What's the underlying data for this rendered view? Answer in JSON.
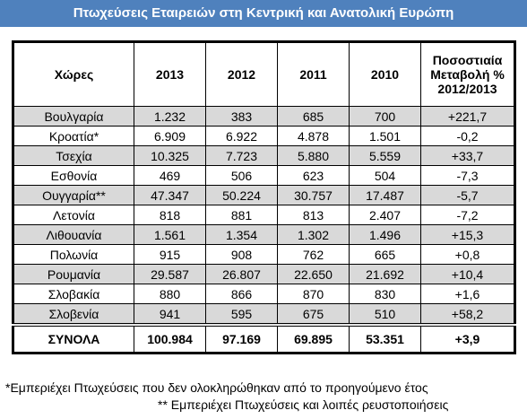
{
  "header": {
    "title": "Πτωχεύσεις Εταιρειών στη Κεντρική και Ανατολική Ευρώπη"
  },
  "table": {
    "columns": [
      "Χώρες",
      "2013",
      "2012",
      "2011",
      "2010",
      [
        "Ποσοστιαία",
        "Μεταβολή %",
        "2012/2013"
      ]
    ],
    "rows": [
      [
        "Βουλγαρία",
        "1.232",
        "383",
        "685",
        "700",
        "+221,7"
      ],
      [
        "Κροατία*",
        "6.909",
        "6.922",
        "4.878",
        "1.501",
        "-0,2"
      ],
      [
        "Τσεχία",
        "10.325",
        "7.723",
        "5.880",
        "5.559",
        "+33,7"
      ],
      [
        "Εσθονία",
        "469",
        "506",
        "623",
        "504",
        "-7,3"
      ],
      [
        "Ουγγαρία**",
        "47.347",
        "50.224",
        "30.757",
        "17.487",
        "-5,7"
      ],
      [
        "Λετονία",
        "818",
        "881",
        "813",
        "2.407",
        "-7,2"
      ],
      [
        "Λιθουανία",
        "1.561",
        "1.354",
        "1.302",
        "1.496",
        "+15,3"
      ],
      [
        "Πολωνία",
        "915",
        "908",
        "762",
        "665",
        "+0,8"
      ],
      [
        "Ρουμανία",
        "29.587",
        "26.807",
        "22.650",
        "21.692",
        "+10,4"
      ],
      [
        "Σλοβακία",
        "880",
        "866",
        "870",
        "830",
        "+1,6"
      ],
      [
        "Σλοβενία",
        "941",
        "595",
        "675",
        "510",
        "+58,2"
      ]
    ],
    "total": [
      "ΣΥΝΟΛΑ",
      "100.984",
      "97.169",
      "69.895",
      "53.351",
      "+3,9"
    ]
  },
  "footnotes": [
    "*Εμπεριέχει Πτωχεύσεις που δεν ολοκληρώθηκαν από το προηγούμενο έτος",
    "** Εμπεριέχει Πτωχεύσεις και λοιπές ρευστοποιήσεις"
  ]
}
